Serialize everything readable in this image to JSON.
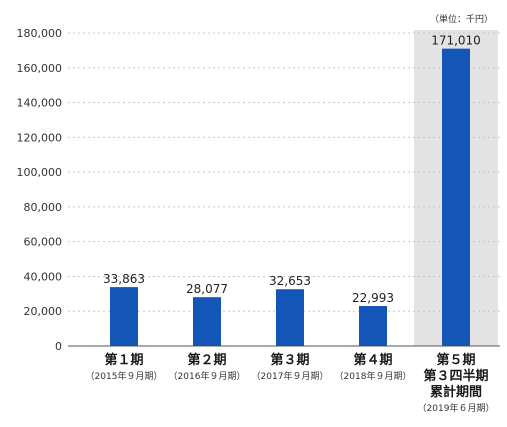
{
  "chart_data": {
    "type": "bar",
    "unit_label": "（単位：千円）",
    "categories": [
      {
        "label": [
          "第１期"
        ],
        "sub": "（2015年９月期）"
      },
      {
        "label": [
          "第２期"
        ],
        "sub": "（2016年９月期）"
      },
      {
        "label": [
          "第３期"
        ],
        "sub": "（2017年９月期）"
      },
      {
        "label": [
          "第４期"
        ],
        "sub": "（2018年９月期）"
      },
      {
        "label": [
          "第５期",
          "第３四半期",
          "累計期間"
        ],
        "sub": "（2019年６月期）"
      }
    ],
    "values": [
      33863,
      28077,
      32653,
      22993,
      171010
    ],
    "value_labels": [
      "33,863",
      "28,077",
      "32,653",
      "22,993",
      "171,010"
    ],
    "ylim": [
      0,
      180000
    ],
    "yticks": [
      0,
      20000,
      40000,
      60000,
      80000,
      100000,
      120000,
      140000,
      160000,
      180000
    ],
    "ytick_labels": [
      "0",
      "20,000",
      "40,000",
      "60,000",
      "80,000",
      "100,000",
      "120,000",
      "140,000",
      "160,000",
      "180,000"
    ],
    "grid": true,
    "highlight_index": 4,
    "colors": {
      "bar": "#1455b8",
      "highlight_bg": "#e3e3e3",
      "grid": "#c8c8c8",
      "axis": "#555555"
    }
  }
}
